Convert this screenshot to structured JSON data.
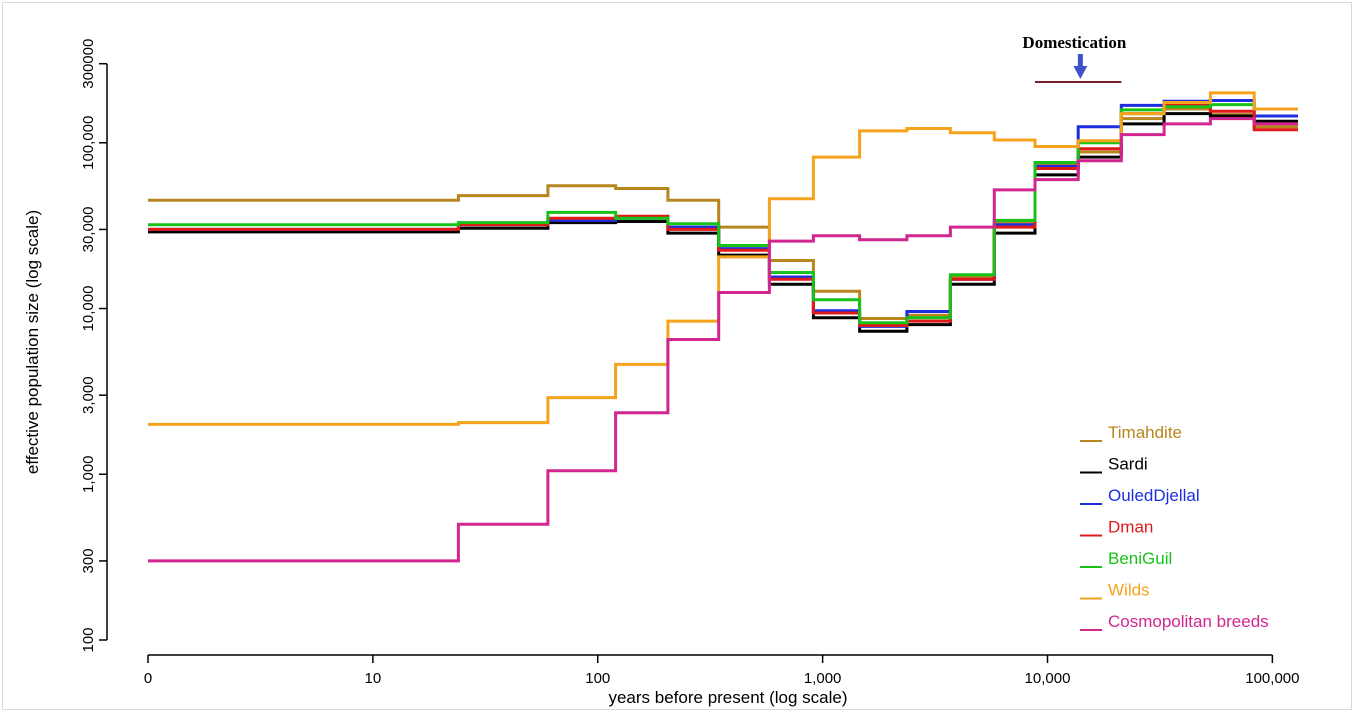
{
  "chart_data": {
    "type": "line",
    "step": true,
    "xlabel": "years before present (log scale)",
    "ylabel": "effective population size (log scale)",
    "x_scale": "log",
    "y_scale": "log",
    "x_ticks": [
      {
        "value": 1,
        "label": "0"
      },
      {
        "value": 10,
        "label": "10"
      },
      {
        "value": 100,
        "label": "100"
      },
      {
        "value": 1000,
        "label": "1,000"
      },
      {
        "value": 10000,
        "label": "10,000"
      },
      {
        "value": 100000,
        "label": "100,000"
      }
    ],
    "y_ticks": [
      {
        "value": 100,
        "label": "100"
      },
      {
        "value": 300,
        "label": "300"
      },
      {
        "value": 1000,
        "label": "1,000"
      },
      {
        "value": 3000,
        "label": "3,000"
      },
      {
        "value": 10000,
        "label": "10,000"
      },
      {
        "value": 30000,
        "label": "30,000"
      },
      {
        "value": 100000,
        "label": "100,000"
      },
      {
        "value": 300000,
        "label": "300000"
      }
    ],
    "xlim": [
      1,
      130000
    ],
    "ylim": [
      100,
      400000
    ],
    "breakpoints": [
      1,
      24,
      60,
      120,
      205,
      345,
      580,
      910,
      1460,
      2370,
      3700,
      5800,
      8800,
      13700,
      21300,
      33000,
      53000,
      83000,
      132000
    ],
    "series": [
      {
        "name": "Timahdite",
        "color": "#b8861e",
        "values": [
          45000,
          48000,
          55000,
          53000,
          45000,
          31000,
          19500,
          12700,
          8700,
          9100,
          15500,
          33000,
          73000,
          88000,
          140000,
          160000,
          148000,
          125000
        ]
      },
      {
        "name": "Sardi",
        "color": "#000000",
        "values": [
          29000,
          30500,
          33000,
          33500,
          28500,
          21000,
          14000,
          8800,
          7300,
          8000,
          14000,
          28500,
          64000,
          82000,
          130000,
          150000,
          145000,
          135000
        ]
      },
      {
        "name": "OuledDjellal",
        "color": "#1d2ee0",
        "values": [
          30000,
          32000,
          34000,
          35000,
          31000,
          23000,
          15500,
          9700,
          7800,
          9600,
          15000,
          32000,
          72000,
          125000,
          168000,
          178000,
          180000,
          145000
        ]
      },
      {
        "name": "Dman",
        "color": "#e01919",
        "values": [
          30000,
          32000,
          35000,
          36000,
          30000,
          22500,
          15000,
          9400,
          7900,
          8400,
          15000,
          31000,
          70000,
          92000,
          150000,
          168000,
          155000,
          120000
        ]
      },
      {
        "name": "BeniGuil",
        "color": "#18c218",
        "values": [
          32000,
          33000,
          38000,
          35000,
          32500,
          24000,
          16500,
          11300,
          8200,
          8800,
          16000,
          34000,
          76000,
          100000,
          158000,
          165000,
          170000,
          160000
        ]
      },
      {
        "name": "Wilds",
        "color": "#f5a21c",
        "values": [
          2000,
          2050,
          2900,
          4600,
          8400,
          20500,
          46000,
          82000,
          118000,
          122000,
          115000,
          104000,
          95000,
          103000,
          150000,
          175000,
          200000,
          160000
        ]
      },
      {
        "name": "Cosmopolitan breeds",
        "color": "#d1268f",
        "values": [
          300,
          500,
          1050,
          2350,
          6500,
          12500,
          25500,
          27500,
          26000,
          27500,
          31000,
          52000,
          60000,
          78000,
          112000,
          130000,
          140000,
          130000
        ]
      }
    ],
    "annotations": [
      {
        "text": "Domestication",
        "arrow_color": "#3f52c8",
        "arrow_x": 14000,
        "bar_x": [
          8800,
          21300
        ],
        "bar_color": "#7a1f2e"
      }
    ],
    "legend_position": "bottom-right",
    "grid": false
  }
}
